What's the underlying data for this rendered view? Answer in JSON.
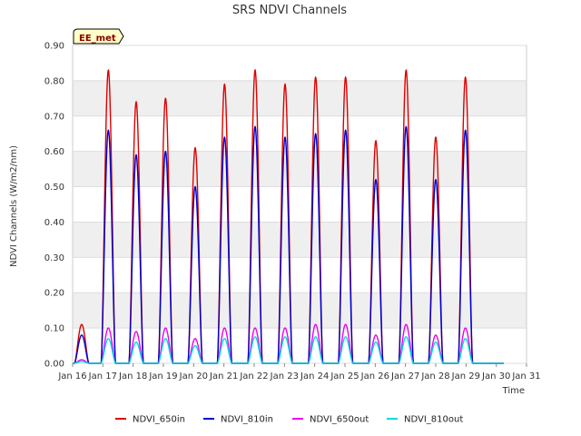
{
  "chart_data": {
    "type": "line",
    "title": "SRS NDVI Channels",
    "xlabel": "Time",
    "ylabel": "NDVI Channels (W/m2/nm)",
    "badge": "EE_met",
    "x_tick_labels": [
      "Jan 16",
      "Jan 17",
      "Jan 18",
      "Jan 19",
      "Jan 20",
      "Jan 21",
      "Jan 22",
      "Jan 23",
      "Jan 24",
      "Jan 25",
      "Jan 26",
      "Jan 27",
      "Jan 28",
      "Jan 29",
      "Jan 30",
      "Jan 31"
    ],
    "y_tick_labels": [
      "0.00",
      "0.10",
      "0.20",
      "0.30",
      "0.40",
      "0.50",
      "0.60",
      "0.70",
      "0.80",
      "0.90"
    ],
    "ylim": [
      0,
      0.9
    ],
    "xlim_days": [
      "Jan 16",
      "Jan 31"
    ],
    "grid": true,
    "legend_position": "bottom",
    "daily_peaks": {
      "days": [
        "Jan 16",
        "Jan 17",
        "Jan 18",
        "Jan 19",
        "Jan 20",
        "Jan 21",
        "Jan 22",
        "Jan 23",
        "Jan 24",
        "Jan 25",
        "Jan 26",
        "Jan 27",
        "Jan 28",
        "Jan 29",
        "Jan 30"
      ],
      "noon_day_offset": [
        0.3,
        1.18,
        2.1,
        3.07,
        4.05,
        5.02,
        6.03,
        7.02,
        8.03,
        9.02,
        10.02,
        11.02,
        12.0,
        12.98,
        14.0
      ]
    },
    "series": [
      {
        "name": "NDVI_650in",
        "color": "#dd0000",
        "peaks": [
          0.11,
          0.83,
          0.74,
          0.75,
          0.61,
          0.79,
          0.83,
          0.79,
          0.81,
          0.81,
          0.63,
          0.83,
          0.64,
          0.81,
          0.0
        ]
      },
      {
        "name": "NDVI_810in",
        "color": "#0000cc",
        "peaks": [
          0.08,
          0.66,
          0.59,
          0.6,
          0.5,
          0.64,
          0.67,
          0.64,
          0.65,
          0.66,
          0.52,
          0.67,
          0.52,
          0.66,
          0.0
        ]
      },
      {
        "name": "NDVI_650out",
        "color": "#ee00ee",
        "peaks": [
          0.01,
          0.1,
          0.09,
          0.1,
          0.07,
          0.1,
          0.1,
          0.1,
          0.11,
          0.11,
          0.08,
          0.11,
          0.08,
          0.1,
          0.0
        ]
      },
      {
        "name": "NDVI_810out",
        "color": "#00dddd",
        "peaks": [
          0.005,
          0.07,
          0.06,
          0.07,
          0.05,
          0.07,
          0.075,
          0.075,
          0.075,
          0.075,
          0.06,
          0.075,
          0.06,
          0.07,
          0.0
        ]
      }
    ]
  }
}
